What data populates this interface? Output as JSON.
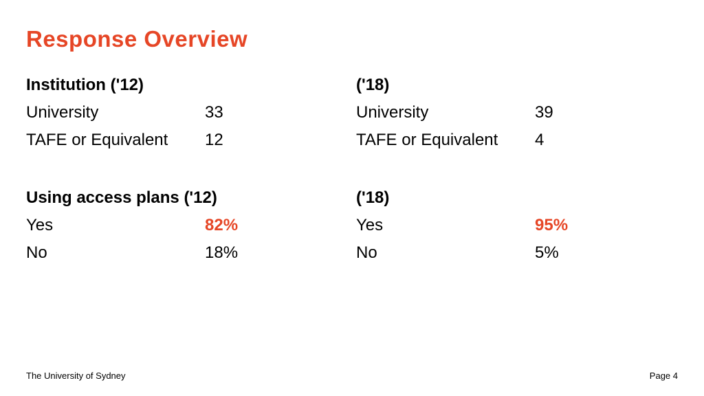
{
  "colors": {
    "accent": "#e64626",
    "text": "#000000",
    "background": "#ffffff"
  },
  "title": "Response Overview",
  "left": {
    "institution": {
      "header": "Institution ('12)",
      "rows": [
        {
          "label": "University",
          "value": "33",
          "highlight": false
        },
        {
          "label": "TAFE or Equivalent",
          "value": "12",
          "highlight": false
        }
      ]
    },
    "access": {
      "header": "Using access plans ('12)",
      "rows": [
        {
          "label": "Yes",
          "value": "82%",
          "highlight": true
        },
        {
          "label": "No",
          "value": "18%",
          "highlight": false
        }
      ]
    }
  },
  "right": {
    "institution": {
      "header": "('18)",
      "rows": [
        {
          "label": "University",
          "value": "39",
          "highlight": false
        },
        {
          "label": "TAFE or Equivalent",
          "value": "4",
          "highlight": false
        }
      ]
    },
    "access": {
      "header": "('18)",
      "rows": [
        {
          "label": "Yes",
          "value": "95%",
          "highlight": true
        },
        {
          "label": "No",
          "value": "5%",
          "highlight": false
        }
      ]
    }
  },
  "footer": {
    "left": "The University of Sydney",
    "right": "Page 4"
  }
}
